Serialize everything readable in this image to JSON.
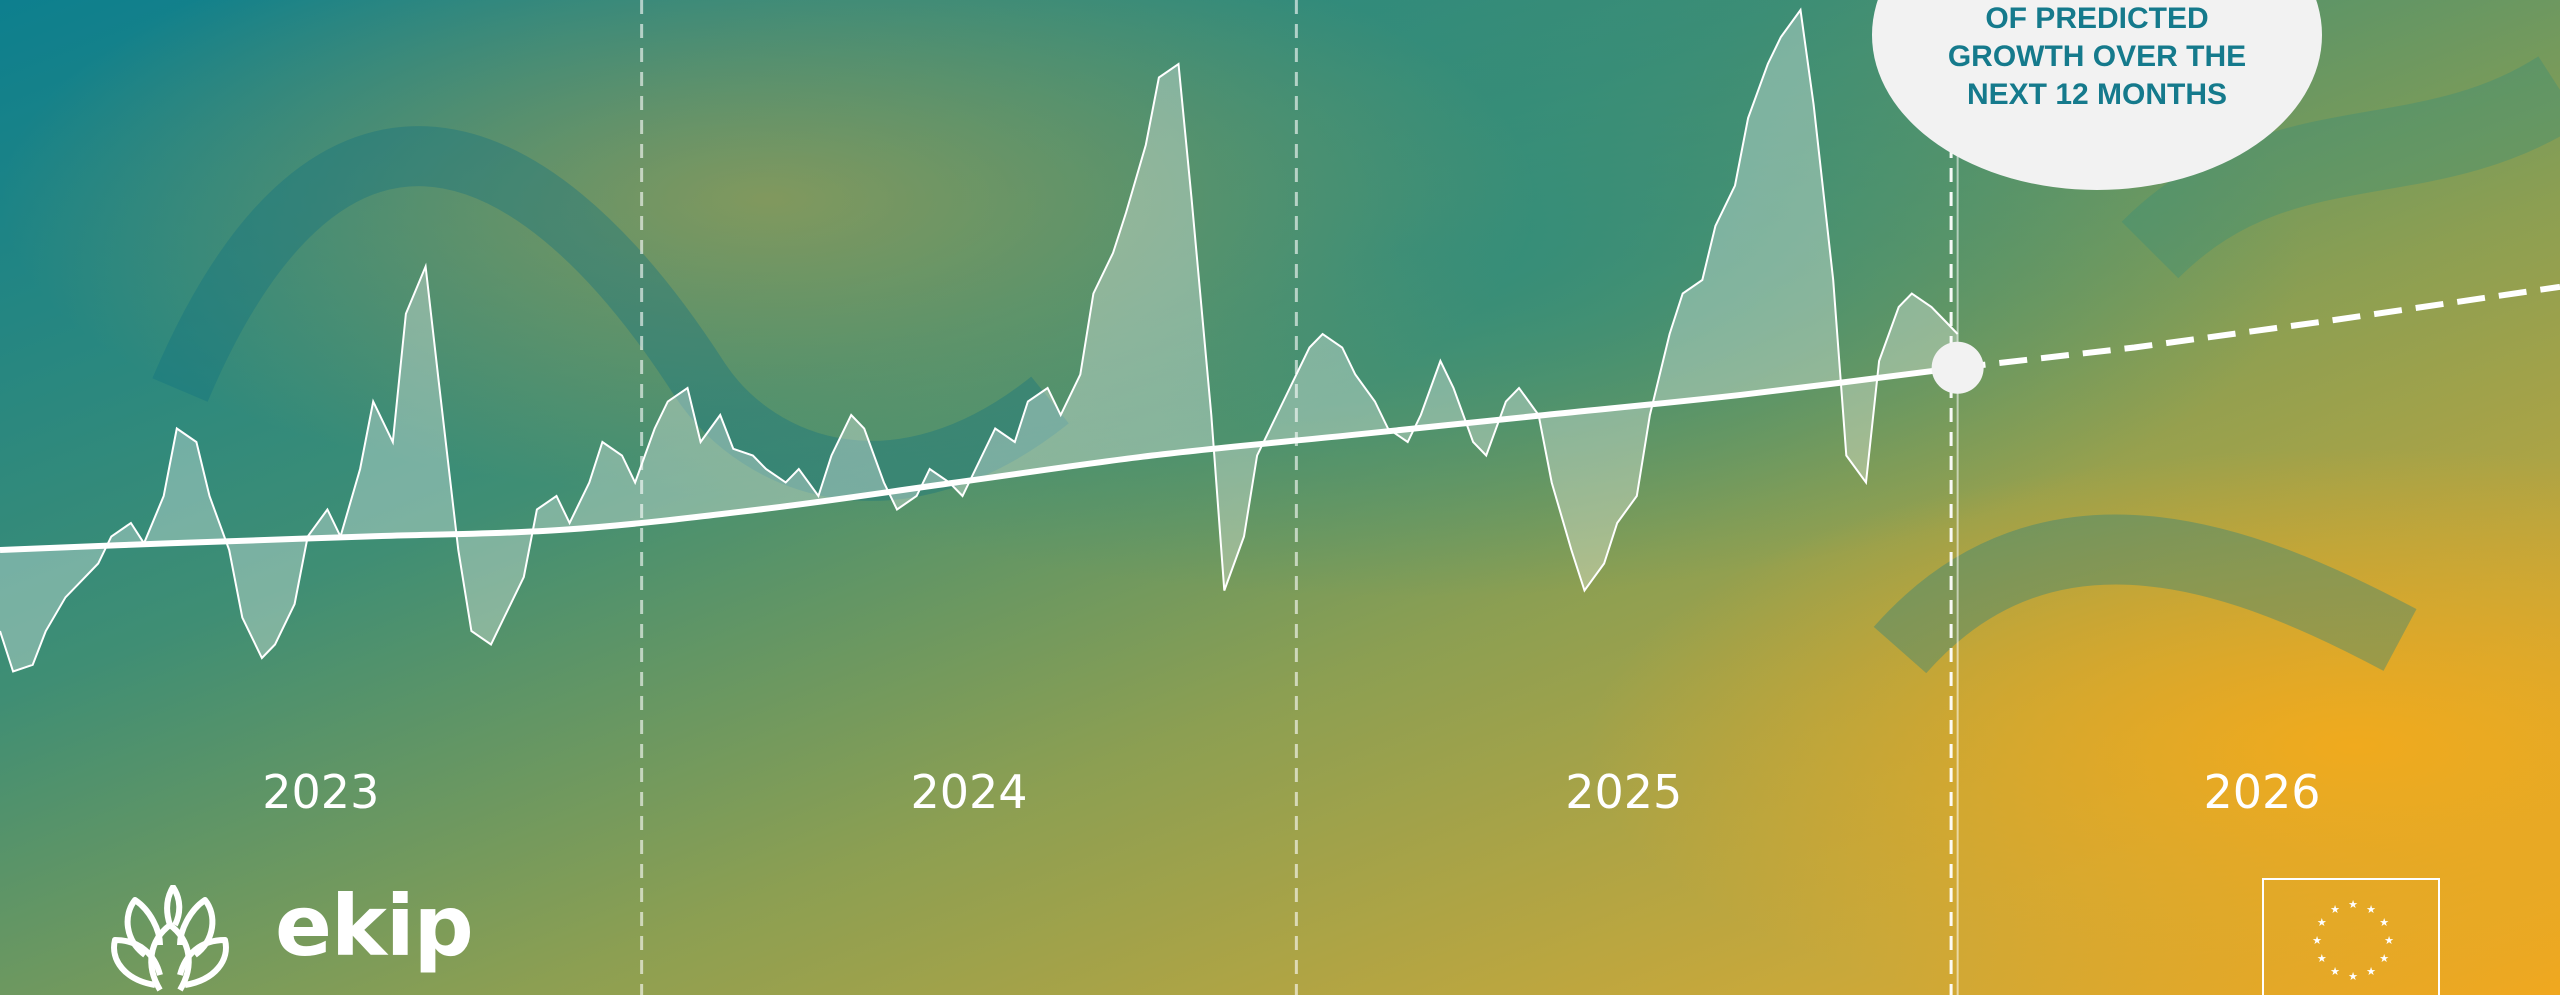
{
  "callout": {
    "text": "OF PREDICTED\nGROWTH OVER THE\nNEXT 12 MONTHS",
    "color": "#157a8c"
  },
  "brand": {
    "wordmark": "ekip",
    "logo_icon": "lotus-flower-icon"
  },
  "footer": {
    "eu_flag_icon": "eu-flag-icon"
  },
  "colors": {
    "line": "#ffffff",
    "teal": "#0f7f8c",
    "olive": "#8a9e50",
    "gold": "#f0a820"
  },
  "chart_data": {
    "type": "line",
    "title": "",
    "xlabel": "",
    "ylabel": "",
    "grid": false,
    "x_tick_labels": [
      "2023",
      "2024",
      "2025",
      "2026"
    ],
    "year_dividers": [
      2023.92,
      2024.92,
      2025.92
    ],
    "xlim": [
      2022.94,
      2026.85
    ],
    "ylim": [
      0,
      100
    ],
    "series": [
      {
        "kind": "actual",
        "x": [
          2022.94,
          2022.96,
          2022.99,
          2023.01,
          2023.04,
          2023.06,
          2023.09,
          2023.11,
          2023.14,
          2023.16,
          2023.19,
          2023.21,
          2023.24,
          2023.26,
          2023.29,
          2023.31,
          2023.34,
          2023.36,
          2023.39,
          2023.41,
          2023.44,
          2023.46,
          2023.49,
          2023.51,
          2023.54,
          2023.56,
          2023.59,
          2023.61,
          2023.64,
          2023.66,
          2023.69,
          2023.71,
          2023.74,
          2023.76,
          2023.79,
          2023.81,
          2023.84,
          2023.86,
          2023.89,
          2023.91,
          2023.94,
          2023.96,
          2023.99,
          2024.01,
          2024.04,
          2024.06,
          2024.09,
          2024.11,
          2024.14,
          2024.16,
          2024.19,
          2024.21,
          2024.24,
          2024.26,
          2024.29,
          2024.31,
          2024.34,
          2024.36,
          2024.39,
          2024.41,
          2024.44,
          2024.46,
          2024.49,
          2024.51,
          2024.54,
          2024.56,
          2024.59,
          2024.61,
          2024.64,
          2024.66,
          2024.69,
          2024.71,
          2024.74,
          2024.76,
          2024.79,
          2024.81,
          2024.84,
          2024.86,
          2024.89,
          2024.91,
          2024.94,
          2024.96,
          2024.99,
          2025.01,
          2025.04,
          2025.06,
          2025.09,
          2025.11,
          2025.14,
          2025.16,
          2025.19,
          2025.21,
          2025.24,
          2025.26,
          2025.29,
          2025.31,
          2025.34,
          2025.36,
          2025.39,
          2025.41,
          2025.44,
          2025.46,
          2025.49,
          2025.51,
          2025.54,
          2025.56,
          2025.59,
          2025.61,
          2025.64,
          2025.66,
          2025.69,
          2025.71,
          2025.74,
          2025.76,
          2025.79,
          2025.81,
          2025.84,
          2025.86,
          2025.89,
          2025.91,
          2025.93
        ],
        "y": [
          8,
          2,
          3,
          8,
          13,
          15,
          18,
          22,
          24,
          21,
          28,
          38,
          36,
          28,
          20,
          10,
          4,
          6,
          12,
          22,
          26,
          22,
          32,
          42,
          36,
          55,
          62,
          45,
          20,
          8,
          6,
          10,
          16,
          26,
          28,
          24,
          30,
          36,
          34,
          30,
          38,
          42,
          44,
          36,
          40,
          35,
          34,
          32,
          30,
          32,
          28,
          34,
          40,
          38,
          30,
          26,
          28,
          32,
          30,
          28,
          34,
          38,
          36,
          42,
          44,
          40,
          46,
          58,
          64,
          70,
          80,
          90,
          92,
          72,
          40,
          14,
          22,
          34,
          40,
          44,
          50,
          52,
          50,
          46,
          42,
          38,
          36,
          40,
          48,
          44,
          36,
          34,
          42,
          44,
          40,
          30,
          20,
          14,
          18,
          24,
          28,
          40,
          52,
          58,
          60,
          68,
          74,
          84,
          92,
          96,
          100,
          86,
          60,
          34,
          30,
          48,
          56,
          58,
          56,
          54,
          52
        ]
      },
      {
        "kind": "trend",
        "x": [
          2022.94,
          2023.2,
          2023.5,
          2023.8,
          2024.1,
          2024.4,
          2024.7,
          2025.0,
          2025.3,
          2025.6,
          2025.93
        ],
        "y": [
          20,
          21,
          22,
          23,
          26,
          30,
          34,
          37,
          40,
          43,
          47
        ]
      },
      {
        "kind": "forecast",
        "x": [
          2025.93,
          2026.2,
          2026.5,
          2026.85
        ],
        "y": [
          47,
          50,
          54,
          59
        ]
      }
    ]
  }
}
